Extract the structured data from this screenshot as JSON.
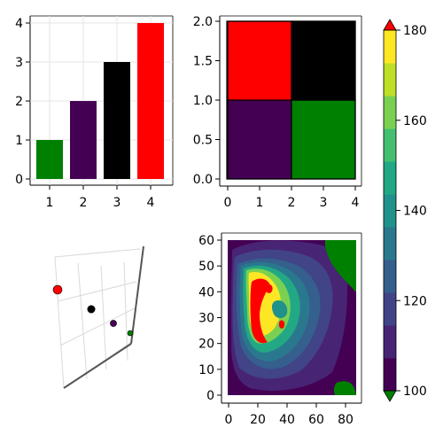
{
  "colors": {
    "green": "#008000",
    "purple": "#440154",
    "black": "#000000",
    "red": "#ff0000",
    "frame": "#000000",
    "grid": "#e6e6e6",
    "viridis": [
      "#440154",
      "#482475",
      "#414487",
      "#355f8d",
      "#2a788e",
      "#21918c",
      "#22a884",
      "#44bf70",
      "#7ad151",
      "#bddf26",
      "#fde725"
    ]
  },
  "chart_data": [
    {
      "type": "bar",
      "categories": [
        "1",
        "2",
        "3",
        "4"
      ],
      "values": [
        1,
        2,
        3,
        4
      ],
      "bar_colors": [
        "green",
        "purple",
        "black",
        "red"
      ],
      "xticks": [
        "1",
        "2",
        "3",
        "4"
      ],
      "yticks": [
        "0",
        "1",
        "2",
        "3",
        "4"
      ],
      "ylim": [
        0,
        4.2
      ],
      "grid": true
    },
    {
      "type": "heatmap",
      "cells": [
        {
          "x0": 0,
          "x1": 2,
          "y0": 0,
          "y1": 1,
          "color": "purple"
        },
        {
          "x0": 2,
          "x1": 4,
          "y0": 0,
          "y1": 1,
          "color": "green"
        },
        {
          "x0": 0,
          "x1": 2,
          "y0": 1,
          "y1": 2,
          "color": "red"
        },
        {
          "x0": 2,
          "x1": 4,
          "y0": 1,
          "y1": 2,
          "color": "black"
        }
      ],
      "xticks": [
        "0",
        "1",
        "2",
        "3",
        "4"
      ],
      "yticks": [
        "0.0",
        "0.5",
        "1.0",
        "1.5",
        "2.0"
      ],
      "xlim": [
        0,
        4
      ],
      "ylim": [
        0,
        2
      ]
    },
    {
      "type": "scatter",
      "dimensions": 3,
      "points": [
        {
          "x": 1,
          "y": 1,
          "z": 1,
          "color": "green",
          "size": 1
        },
        {
          "x": 2,
          "y": 2,
          "z": 2,
          "color": "purple",
          "size": 2
        },
        {
          "x": 3,
          "y": 3,
          "z": 3,
          "color": "black",
          "size": 3
        },
        {
          "x": 4,
          "y": 4,
          "z": 4,
          "color": "red",
          "size": 4
        }
      ],
      "axis_labels_visible": false
    },
    {
      "type": "contour",
      "xticks": [
        "0",
        "20",
        "40",
        "60",
        "80"
      ],
      "yticks": [
        "0",
        "10",
        "20",
        "30",
        "40",
        "50",
        "60"
      ],
      "xlim": [
        0,
        87
      ],
      "ylim": [
        0,
        61
      ],
      "levels": [
        100,
        110,
        115,
        120,
        125,
        130,
        135,
        140,
        145,
        150,
        155,
        160,
        165,
        170,
        175,
        180
      ],
      "below_color": "green",
      "above_color": "red",
      "colorbar": {
        "ticks": [
          "100",
          "120",
          "140",
          "160",
          "180"
        ],
        "range": [
          100,
          180
        ],
        "extend_low": "green",
        "extend_high": "red"
      }
    }
  ]
}
